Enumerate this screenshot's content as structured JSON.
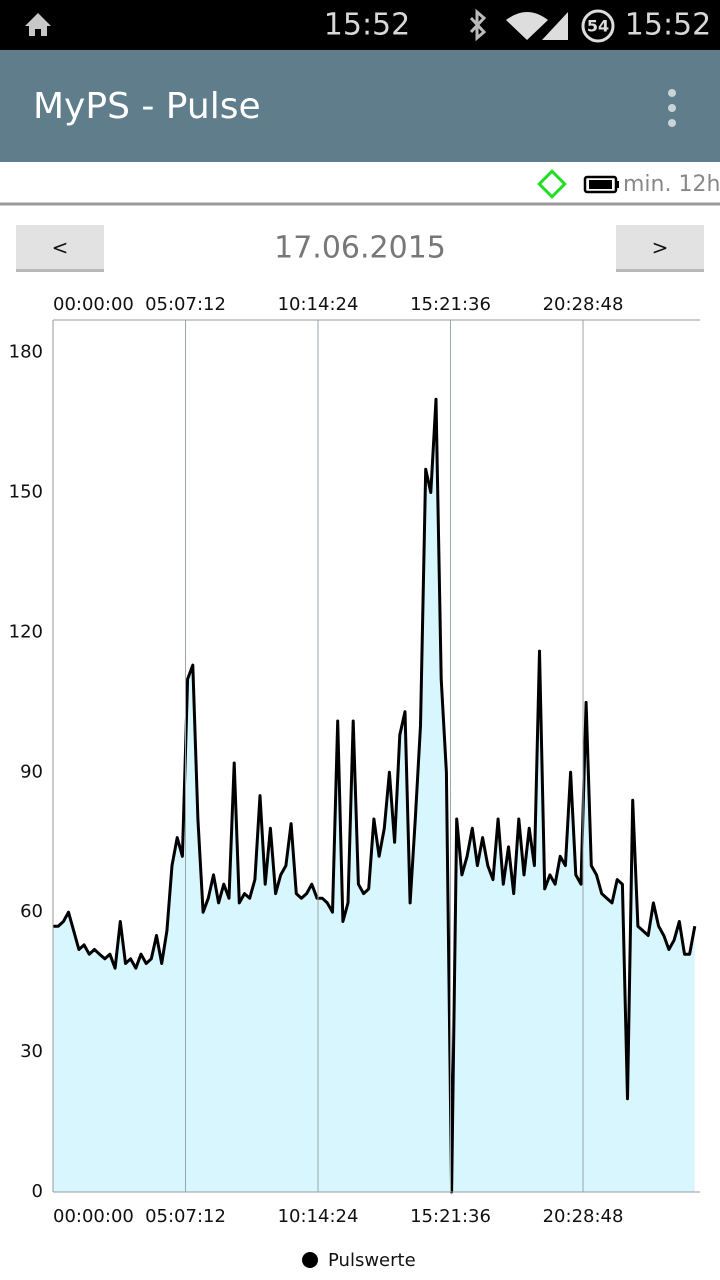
{
  "status_bar": {
    "clock": "15:52",
    "battery": "54",
    "time": "15:52"
  },
  "app_bar": {
    "title": "MyPS - Pulse"
  },
  "info_bar": {
    "label": "min. 12h"
  },
  "navigation": {
    "prev": "<",
    "date": "17.06.2015",
    "next": ">"
  },
  "chart_data": {
    "type": "area",
    "x": [
      0,
      720,
      1440,
      2160,
      2880,
      3600,
      4320,
      5040,
      5760,
      6480,
      7200,
      7920,
      8640,
      9360,
      10080,
      10800,
      11520,
      12240,
      12960,
      13680,
      14400,
      15120,
      15840,
      16560,
      17280,
      18000,
      18720,
      19440,
      20160,
      20880,
      21600,
      22320,
      23040,
      23760,
      24480,
      25200,
      25920,
      26640,
      27360,
      28080,
      28800,
      29520,
      30240,
      30960,
      31680,
      32400,
      33120,
      33840,
      34560,
      35280,
      36000,
      36720,
      37440,
      38160,
      38880,
      39600,
      40320,
      41040,
      41760,
      42480,
      43200,
      43920,
      44640,
      45360,
      46080,
      46800,
      47520,
      48240,
      48960,
      49680,
      50400,
      51120,
      51840,
      52560,
      53280,
      54000,
      54720,
      55440,
      56160,
      56880,
      57600,
      58320,
      59040,
      59760,
      60480,
      61200,
      61920,
      62640,
      63360,
      64080,
      64800,
      65520,
      66240,
      66960,
      67680,
      68400,
      69120,
      69840,
      70560,
      71280,
      72000,
      72720,
      73440,
      74160,
      74880,
      75600,
      76320,
      77040,
      77760,
      78480,
      79200,
      79920,
      80640,
      81360,
      82080,
      82800,
      83520,
      84240,
      84960,
      85680,
      86400,
      87120,
      87840,
      88560,
      89280
    ],
    "series": [
      {
        "name": "Pulswerte",
        "color": "#000000",
        "fill_color": "#d8f6fd",
        "values": [
          57,
          57,
          58,
          60,
          56,
          52,
          53,
          51,
          52,
          51,
          50,
          51,
          48,
          58,
          49,
          50,
          48,
          51,
          49,
          50,
          55,
          49,
          56,
          70,
          76,
          72,
          110,
          113,
          80,
          60,
          63,
          68,
          62,
          66,
          63,
          92,
          62,
          64,
          63,
          67,
          85,
          66,
          78,
          64,
          68,
          70,
          79,
          64,
          63,
          64,
          66,
          63,
          63,
          62,
          60,
          101,
          58,
          62,
          101,
          66,
          64,
          65,
          80,
          72,
          78,
          90,
          75,
          98,
          103,
          62,
          80,
          100,
          155,
          150,
          170,
          110,
          90,
          0,
          80,
          68,
          72,
          78,
          70,
          76,
          70,
          67,
          80,
          66,
          74,
          64,
          80,
          68,
          78,
          70,
          116,
          65,
          68,
          66,
          72,
          70,
          90,
          68,
          66,
          105,
          70,
          68,
          64,
          63,
          62,
          67,
          66,
          20,
          84,
          57,
          56,
          55,
          62,
          57,
          55,
          52,
          54,
          58,
          51,
          51,
          57
        ]
      }
    ],
    "xlim": [
      0,
      90000
    ],
    "xticks": [
      {
        "value": 0,
        "label": "00:00:00"
      },
      {
        "value": 18432,
        "label": "05:07:12"
      },
      {
        "value": 36864,
        "label": "10:14:24"
      },
      {
        "value": 55296,
        "label": "15:21:36"
      },
      {
        "value": 73728,
        "label": "20:28:48"
      }
    ],
    "ylim": [
      0,
      187
    ],
    "yticks": [
      0,
      30,
      60,
      90,
      120,
      150,
      180
    ],
    "xgrid": true,
    "ygrid": false,
    "legend": "bottom"
  }
}
